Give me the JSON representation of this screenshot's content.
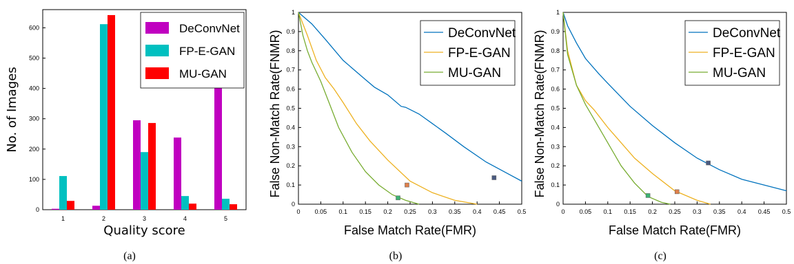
{
  "chart_data": [
    {
      "type": "bar",
      "caption": "(a)",
      "xlabel": "Quality score",
      "ylabel": "No. of Images",
      "categories": [
        "1",
        "2",
        "3",
        "4",
        "5"
      ],
      "ylim": [
        0,
        660
      ],
      "yticks": [
        0,
        100,
        200,
        300,
        400,
        500,
        600
      ],
      "legend_position": "top-right",
      "colors": {
        "DeConvNet": "#c000c0",
        "FP-E-GAN": "#00c0c0",
        "MU-GAN": "#ff0000"
      },
      "series": [
        {
          "name": "DeConvNet",
          "values": [
            3,
            13,
            295,
            238,
            450
          ]
        },
        {
          "name": "FP-E-GAN",
          "values": [
            111,
            612,
            190,
            45,
            36
          ]
        },
        {
          "name": "MU-GAN",
          "values": [
            29,
            642,
            286,
            20,
            18
          ]
        }
      ]
    },
    {
      "type": "line",
      "caption": "(b)",
      "xlabel": "False Match Rate(FMR)",
      "ylabel": "False Non-Match Rate(FNMR)",
      "xlim": [
        0,
        0.5
      ],
      "ylim": [
        0,
        1
      ],
      "xticks": [
        "0",
        "0.05",
        "0.1",
        "0.15",
        "0.2",
        "0.25",
        "0.3",
        "0.35",
        "0.4",
        "0.45",
        "0.5"
      ],
      "yticks": [
        "0",
        "0.1",
        "0.2",
        "0.3",
        "0.4",
        "0.5",
        "0.6",
        "0.7",
        "0.8",
        "0.9",
        "1"
      ],
      "legend_position": "top-right",
      "colors": {
        "DeConvNet": "#0072bd",
        "FP-E-GAN": "#edb120",
        "MU-GAN": "#77ac30"
      },
      "series": [
        {
          "name": "DeConvNet",
          "x": [
            0,
            0.03,
            0.06,
            0.1,
            0.15,
            0.17,
            0.2,
            0.23,
            0.24,
            0.27,
            0.3,
            0.33,
            0.37,
            0.42,
            0.5
          ],
          "y": [
            1,
            0.94,
            0.86,
            0.75,
            0.65,
            0.61,
            0.57,
            0.51,
            0.505,
            0.47,
            0.42,
            0.37,
            0.3,
            0.22,
            0.12
          ]
        },
        {
          "name": "FP-E-GAN",
          "x": [
            0,
            0.02,
            0.04,
            0.06,
            0.08,
            0.1,
            0.13,
            0.16,
            0.2,
            0.25,
            0.3,
            0.35,
            0.4
          ],
          "y": [
            1,
            0.88,
            0.75,
            0.66,
            0.6,
            0.53,
            0.42,
            0.33,
            0.23,
            0.12,
            0.06,
            0.02,
            0
          ]
        },
        {
          "name": "MU-GAN",
          "x": [
            0,
            0.01,
            0.02,
            0.03,
            0.05,
            0.07,
            0.09,
            0.12,
            0.15,
            0.18,
            0.21,
            0.24,
            0.27
          ],
          "y": [
            1,
            0.88,
            0.8,
            0.74,
            0.64,
            0.52,
            0.4,
            0.27,
            0.17,
            0.1,
            0.05,
            0.02,
            0
          ]
        }
      ],
      "markers": [
        {
          "x": 0.223,
          "y": 0.033,
          "color": "#3cb371"
        },
        {
          "x": 0.243,
          "y": 0.1,
          "color": "#e0804a"
        },
        {
          "x": 0.438,
          "y": 0.138,
          "color": "#4a5a80"
        }
      ]
    },
    {
      "type": "line",
      "caption": "(c)",
      "xlabel": "False Match Rate(FMR)",
      "ylabel": "False Non-Match Rate(FNMR)",
      "xlim": [
        0,
        0.5
      ],
      "ylim": [
        0,
        1
      ],
      "xticks": [
        "0",
        "0.05",
        "0.1",
        "0.15",
        "0.2",
        "0.25",
        "0.3",
        "0.35",
        "0.4",
        "0.45",
        "0.5"
      ],
      "yticks": [
        "0",
        "0.1",
        "0.2",
        "0.3",
        "0.4",
        "0.5",
        "0.6",
        "0.7",
        "0.8",
        "0.9",
        "1"
      ],
      "legend_position": "top-right",
      "colors": {
        "DeConvNet": "#0072bd",
        "FP-E-GAN": "#edb120",
        "MU-GAN": "#77ac30"
      },
      "series": [
        {
          "name": "DeConvNet",
          "x": [
            0,
            0.01,
            0.03,
            0.05,
            0.08,
            0.1,
            0.15,
            0.2,
            0.25,
            0.3,
            0.35,
            0.4,
            0.45,
            0.5
          ],
          "y": [
            1,
            0.93,
            0.84,
            0.76,
            0.68,
            0.63,
            0.51,
            0.41,
            0.32,
            0.24,
            0.18,
            0.13,
            0.1,
            0.07
          ]
        },
        {
          "name": "FP-E-GAN",
          "x": [
            0,
            0.01,
            0.03,
            0.05,
            0.07,
            0.1,
            0.13,
            0.16,
            0.2,
            0.25,
            0.3,
            0.33
          ],
          "y": [
            1,
            0.8,
            0.62,
            0.54,
            0.49,
            0.4,
            0.32,
            0.24,
            0.16,
            0.07,
            0.02,
            0
          ]
        },
        {
          "name": "MU-GAN",
          "x": [
            0,
            0.01,
            0.03,
            0.05,
            0.07,
            0.1,
            0.13,
            0.16,
            0.19,
            0.22,
            0.24
          ],
          "y": [
            1,
            0.78,
            0.62,
            0.52,
            0.44,
            0.32,
            0.2,
            0.11,
            0.04,
            0.01,
            0
          ]
        }
      ],
      "markers": [
        {
          "x": 0.19,
          "y": 0.045,
          "color": "#3cb371"
        },
        {
          "x": 0.255,
          "y": 0.065,
          "color": "#e0804a"
        },
        {
          "x": 0.325,
          "y": 0.215,
          "color": "#4a5a80"
        }
      ]
    }
  ]
}
